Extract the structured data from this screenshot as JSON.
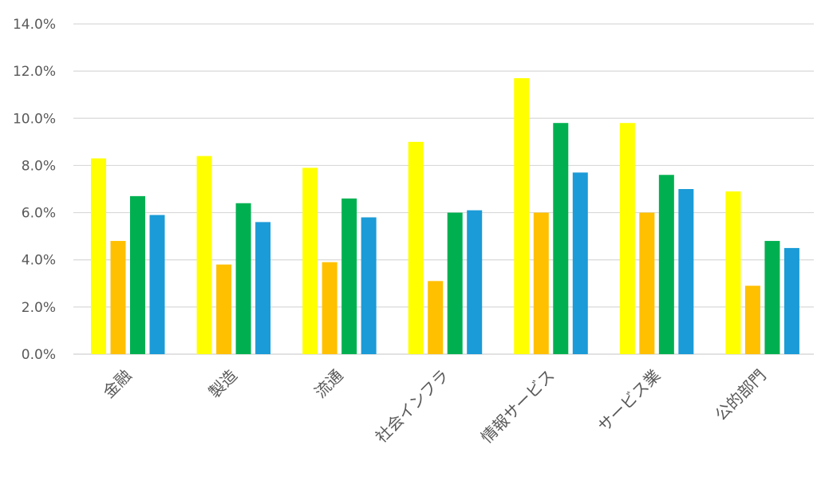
{
  "chart_data": {
    "type": "bar",
    "categories": [
      "金融",
      "製造",
      "流通",
      "社会インフラ",
      "情報サービス",
      "サービス業",
      "公的部門"
    ],
    "series": [
      {
        "color": "#FFFF00",
        "values": [
          8.3,
          8.4,
          7.9,
          9.0,
          11.7,
          9.8,
          6.9
        ]
      },
      {
        "color": "#FFC000",
        "values": [
          4.8,
          3.8,
          3.9,
          3.1,
          6.0,
          6.0,
          2.9
        ]
      },
      {
        "color": "#00B050",
        "values": [
          6.7,
          6.4,
          6.6,
          6.0,
          9.8,
          7.6,
          4.8
        ]
      },
      {
        "color": "#1B9BD7",
        "values": [
          5.9,
          5.6,
          5.8,
          6.1,
          7.7,
          7.0,
          4.5
        ]
      }
    ],
    "ylim": [
      0,
      14
    ],
    "ytick_labels": [
      "0.0%",
      "2.0%",
      "4.0%",
      "6.0%",
      "8.0%",
      "10.0%",
      "12.0%",
      "14.0%"
    ],
    "grid": true,
    "gridline_color": "#D9D9D9",
    "text_color": "#595959"
  }
}
